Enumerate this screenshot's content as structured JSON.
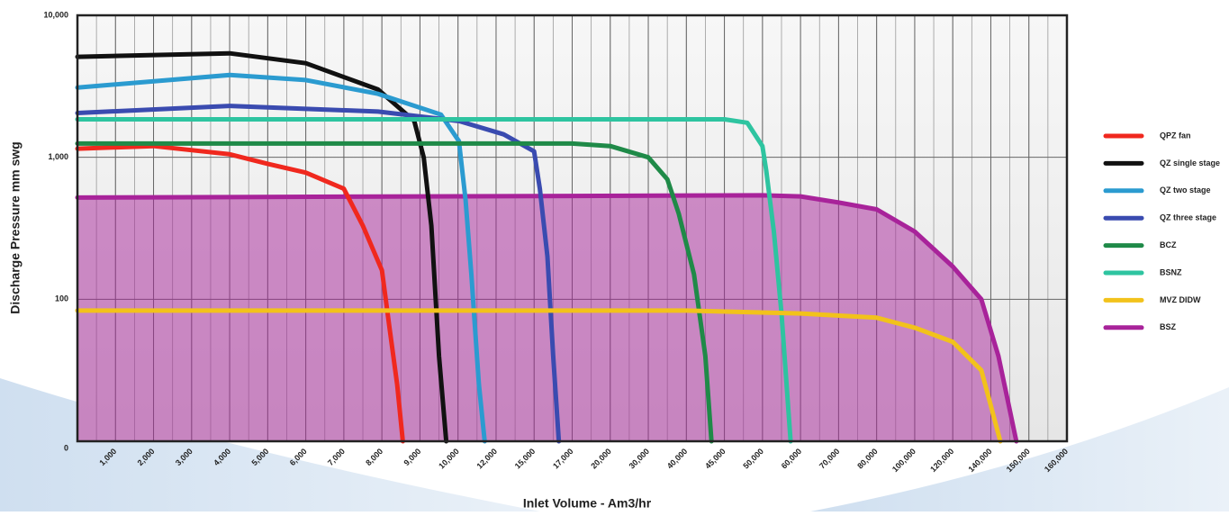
{
  "chart_data": {
    "type": "line",
    "x_label": "Inlet Volume - Am3/hr",
    "y_label": "Discharge Pressure mm swg",
    "xlim": [
      0,
      160000
    ],
    "xticks": [
      {
        "value": 1000,
        "label": "1,000"
      },
      {
        "value": 2000,
        "label": "2,000"
      },
      {
        "value": 3000,
        "label": "3,000"
      },
      {
        "value": 4000,
        "label": "4,000"
      },
      {
        "value": 5000,
        "label": "5,000"
      },
      {
        "value": 6000,
        "label": "6,000"
      },
      {
        "value": 7000,
        "label": "7,000"
      },
      {
        "value": 8000,
        "label": "8,000"
      },
      {
        "value": 9000,
        "label": "9,000"
      },
      {
        "value": 10000,
        "label": "10,000"
      },
      {
        "value": 12000,
        "label": "12,000"
      },
      {
        "value": 15000,
        "label": "15,000"
      },
      {
        "value": 17000,
        "label": "17,000"
      },
      {
        "value": 20000,
        "label": "20,000"
      },
      {
        "value": 30000,
        "label": "30,000"
      },
      {
        "value": 40000,
        "label": "40,000"
      },
      {
        "value": 45000,
        "label": "45,000"
      },
      {
        "value": 50000,
        "label": "50,000"
      },
      {
        "value": 60000,
        "label": "60,000"
      },
      {
        "value": 70000,
        "label": "70,000"
      },
      {
        "value": 80000,
        "label": "80,000"
      },
      {
        "value": 100000,
        "label": "100,000"
      },
      {
        "value": 120000,
        "label": "120,000"
      },
      {
        "value": 140000,
        "label": "140,000"
      },
      {
        "value": 150000,
        "label": "150,000"
      },
      {
        "value": 160000,
        "label": "160,000"
      }
    ],
    "ylim": [
      0,
      10000
    ],
    "yticks": [
      0,
      100,
      {
        "value": 1000,
        "label": "1,000"
      },
      {
        "value": 10000,
        "label": "10,000"
      }
    ],
    "y_scale": "log",
    "grid": true,
    "legend": "right",
    "series": [
      {
        "name": "BSZ",
        "color": "#a8239a",
        "fill": true,
        "x": [
          0,
          50000,
          60000,
          70000,
          80000,
          100000,
          120000,
          135000,
          142000,
          146700
        ],
        "values": [
          520,
          540,
          530,
          480,
          430,
          300,
          170,
          100,
          60,
          0
        ]
      },
      {
        "name": "QPZ fan",
        "color": "#f0281e",
        "x": [
          0,
          2000,
          4000,
          5000,
          6000,
          7000,
          7500,
          8000,
          8200,
          8400,
          8550
        ],
        "values": [
          1150,
          1200,
          1050,
          900,
          780,
          600,
          330,
          160,
          80,
          40,
          0
        ]
      },
      {
        "name": "QZ single stage",
        "color": "#111111",
        "x": [
          0,
          4000,
          6000,
          7900,
          8850,
          9100,
          9300,
          9500,
          9690
        ],
        "values": [
          5100,
          5400,
          4600,
          3000,
          1800,
          1000,
          330,
          60,
          0
        ]
      },
      {
        "name": "QZ two stage",
        "color": "#2b9bd0",
        "x": [
          0,
          4000,
          6000,
          7900,
          9550,
          10050,
          10400,
          10700,
          11100,
          11400
        ],
        "values": [
          3100,
          3800,
          3500,
          2800,
          2000,
          1300,
          500,
          150,
          40,
          0
        ]
      },
      {
        "name": "QZ three stage",
        "color": "#3a4bb0",
        "x": [
          0,
          4000,
          7900,
          10050,
          12600,
          15000,
          15300,
          15700,
          16000,
          16300
        ],
        "values": [
          2050,
          2300,
          2100,
          1800,
          1450,
          1100,
          600,
          200,
          60,
          0
        ]
      },
      {
        "name": "BCZ",
        "color": "#1f8a48",
        "x": [
          0,
          17000,
          20000,
          30000,
          35000,
          38000,
          41000,
          42500,
          43300
        ],
        "values": [
          1250,
          1250,
          1200,
          1000,
          700,
          400,
          150,
          60,
          0
        ]
      },
      {
        "name": "BSNZ",
        "color": "#2ec4a0",
        "x": [
          0,
          45000,
          48000,
          50000,
          51000,
          53000,
          55000,
          57400
        ],
        "values": [
          1850,
          1850,
          1750,
          1200,
          800,
          300,
          90,
          0
        ]
      },
      {
        "name": "MVZ DIDW",
        "color": "#f2c21b",
        "x": [
          0,
          40000,
          60000,
          80000,
          100000,
          120000,
          135000,
          140000,
          142500
        ],
        "values": [
          92,
          92,
          90,
          87,
          80,
          70,
          50,
          25,
          0
        ]
      }
    ],
    "legend_order": [
      1,
      2,
      3,
      4,
      5,
      6,
      7,
      0
    ]
  }
}
